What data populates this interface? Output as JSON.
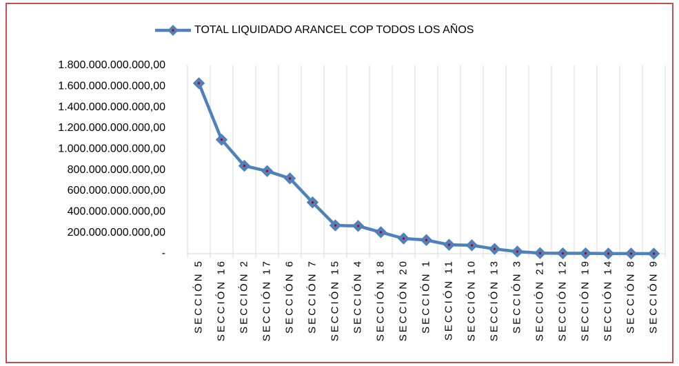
{
  "chart_data": {
    "type": "line",
    "categories": [
      "SECCIÓN 5",
      "SECCIÓN 16",
      "SECCIÓN 2",
      "SECCIÓN 17",
      "SECCIÓN 6",
      "SECCIÓN 7",
      "SECCIÓN 15",
      "SECCIÓN 4",
      "SECCIÓN 18",
      "SECCIÓN 20",
      "SECCIÓN 1",
      "SECCIÓN 11",
      "SECCIÓN 10",
      "SECCIÓN 13",
      "SECCIÓN 3",
      "SECCIÓN 21",
      "SECCIÓN 12",
      "SECCIÓN 19",
      "SECCIÓN 14",
      "SECCIÓN 8",
      "SECCIÓN 9"
    ],
    "series": [
      {
        "name": "TOTAL LIQUIDADO ARANCEL COP TODOS LOS AÑOS",
        "color": "#4f81bd",
        "marker_center_color": "#c00000",
        "values": [
          1630000000000,
          1090000000000,
          840000000000,
          790000000000,
          720000000000,
          490000000000,
          270000000000,
          265000000000,
          205000000000,
          145000000000,
          130000000000,
          85000000000,
          80000000000,
          45000000000,
          20000000000,
          5000000000,
          3000000000,
          3000000000,
          1000000000,
          1000000000,
          0
        ]
      }
    ],
    "ylim": [
      0,
      1800000000000
    ],
    "yticks": [
      {
        "value": 0,
        "label": "-"
      },
      {
        "value": 200000000000,
        "label": "200.000.000.000,00"
      },
      {
        "value": 400000000000,
        "label": "400.000.000.000,00"
      },
      {
        "value": 600000000000,
        "label": "600.000.000.000,00"
      },
      {
        "value": 800000000000,
        "label": "800.000.000.000,00"
      },
      {
        "value": 1000000000000,
        "label": "1.000.000.000.000,00"
      },
      {
        "value": 1200000000000,
        "label": "1.200.000.000.000,00"
      },
      {
        "value": 1400000000000,
        "label": "1.400.000.000.000,00"
      },
      {
        "value": 1600000000000,
        "label": "1.600.000.000.000,00"
      },
      {
        "value": 1800000000000,
        "label": "1.800.000.000.000,00"
      }
    ],
    "grid": "vertical",
    "legend": "top"
  }
}
